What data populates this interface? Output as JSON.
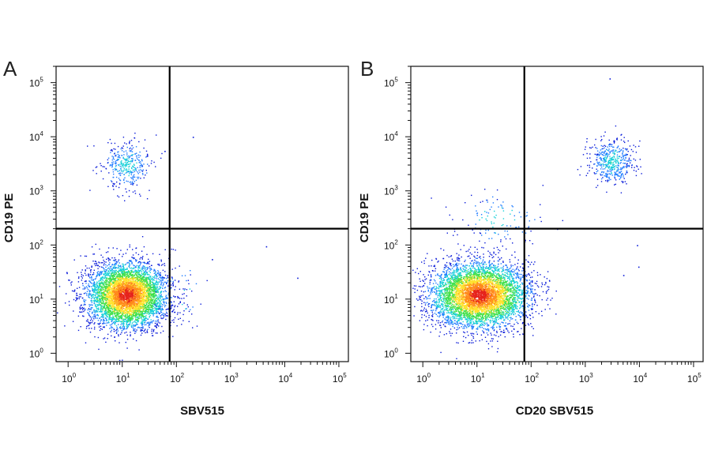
{
  "chart_data": [
    {
      "type": "scatter",
      "panel_label": "A",
      "xlabel": "SBV515",
      "ylabel": "CD19 PE",
      "x_scale": "log",
      "y_scale": "log",
      "xlim": [
        0.6,
        150000
      ],
      "ylim": [
        0.7,
        200000
      ],
      "x_ticks": [
        {
          "base": "10",
          "exp": "0",
          "value": 1
        },
        {
          "base": "10",
          "exp": "1",
          "value": 10
        },
        {
          "base": "10",
          "exp": "2",
          "value": 100
        },
        {
          "base": "10",
          "exp": "3",
          "value": 1000
        },
        {
          "base": "10",
          "exp": "4",
          "value": 10000
        },
        {
          "base": "10",
          "exp": "5",
          "value": 100000
        }
      ],
      "y_ticks": [
        {
          "base": "10",
          "exp": "0",
          "value": 1
        },
        {
          "base": "10",
          "exp": "1",
          "value": 10
        },
        {
          "base": "10",
          "exp": "2",
          "value": 100
        },
        {
          "base": "10",
          "exp": "3",
          "value": 1000
        },
        {
          "base": "10",
          "exp": "4",
          "value": 10000
        },
        {
          "base": "10",
          "exp": "5",
          "value": 100000
        }
      ],
      "quadrant_gate": {
        "x": 75,
        "y": 200
      },
      "populations": [
        {
          "center": [
            12,
            12
          ],
          "spread": [
            0.36,
            0.3
          ],
          "count": 5200,
          "density": "high"
        },
        {
          "center": [
            12,
            3000
          ],
          "spread": [
            0.22,
            0.22
          ],
          "count": 360,
          "density": "low"
        },
        {
          "center": [
            120,
            12
          ],
          "spread": [
            0.25,
            0.3
          ],
          "count": 30,
          "density": "low"
        }
      ],
      "outliers": [
        [
          17000,
          25
        ],
        [
          450,
          55
        ],
        [
          4500,
          95
        ],
        [
          200,
          10000
        ],
        [
          60,
          5500
        ]
      ]
    },
    {
      "type": "scatter",
      "panel_label": "B",
      "xlabel": "CD20 SBV515",
      "ylabel": "CD19 PE",
      "x_scale": "log",
      "y_scale": "log",
      "xlim": [
        0.6,
        150000
      ],
      "ylim": [
        0.7,
        200000
      ],
      "x_ticks": [
        {
          "base": "10",
          "exp": "0",
          "value": 1
        },
        {
          "base": "10",
          "exp": "1",
          "value": 10
        },
        {
          "base": "10",
          "exp": "2",
          "value": 100
        },
        {
          "base": "10",
          "exp": "3",
          "value": 1000
        },
        {
          "base": "10",
          "exp": "4",
          "value": 10000
        },
        {
          "base": "10",
          "exp": "5",
          "value": 100000
        }
      ],
      "y_ticks": [
        {
          "base": "10",
          "exp": "0",
          "value": 1
        },
        {
          "base": "10",
          "exp": "1",
          "value": 10
        },
        {
          "base": "10",
          "exp": "2",
          "value": 100
        },
        {
          "base": "10",
          "exp": "3",
          "value": 1000
        },
        {
          "base": "10",
          "exp": "4",
          "value": 10000
        },
        {
          "base": "10",
          "exp": "5",
          "value": 100000
        }
      ],
      "quadrant_gate": {
        "x": 75,
        "y": 200
      },
      "populations": [
        {
          "center": [
            11,
            12
          ],
          "spread": [
            0.45,
            0.3
          ],
          "count": 5400,
          "density": "high"
        },
        {
          "center": [
            3000,
            3500
          ],
          "spread": [
            0.2,
            0.22
          ],
          "count": 480,
          "density": "low"
        },
        {
          "center": [
            25,
            300
          ],
          "spread": [
            0.4,
            0.25
          ],
          "count": 120,
          "density": "low"
        }
      ],
      "outliers": [
        [
          5000,
          28
        ],
        [
          9500,
          40
        ],
        [
          9000,
          100
        ],
        [
          2800,
          120000
        ],
        [
          300,
          200
        ]
      ]
    }
  ],
  "colors": {
    "density_scale": [
      "#0a1bd9",
      "#1f7cff",
      "#16d0d8",
      "#3ee04a",
      "#ffe22c",
      "#ff8a1a",
      "#e6231c"
    ],
    "axes": "#111111",
    "gate": "#000000"
  }
}
